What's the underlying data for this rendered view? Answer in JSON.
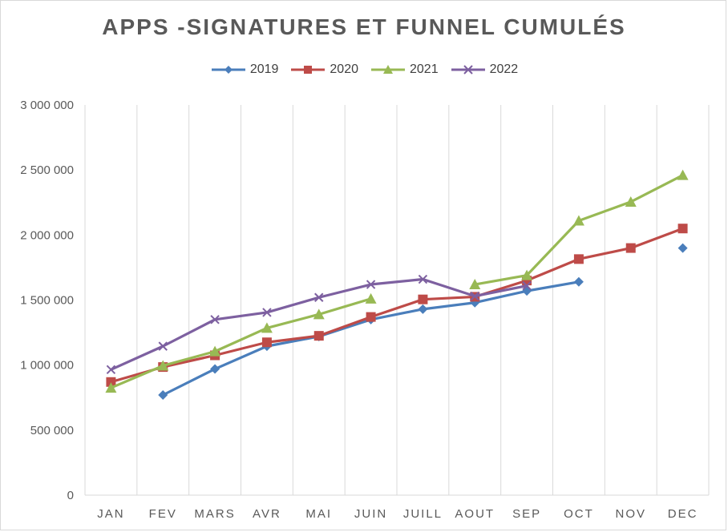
{
  "chart_data": {
    "type": "line",
    "title": "APPS -SIGNATURES ET FUNNEL CUMULÉS",
    "xlabel": "",
    "ylabel": "",
    "categories": [
      "JAN",
      "FEV",
      "MARS",
      "AVR",
      "MAI",
      "JUIN",
      "JUILL",
      "AOUT",
      "SEP",
      "OCT",
      "NOV",
      "DEC"
    ],
    "y_ticks": [
      "0",
      "500 000",
      "1 000 000",
      "1 500 000",
      "2 000 000",
      "2 500 000",
      "3 000 000"
    ],
    "ylim": [
      0,
      3000000
    ],
    "grid": "vertical",
    "legend_position": "top",
    "series": [
      {
        "name": "2019",
        "color": "#4a7ebb",
        "marker": "diamond",
        "values": [
          null,
          770000,
          970000,
          1145000,
          1220000,
          1350000,
          1430000,
          1480000,
          1570000,
          1640000,
          null,
          1900000
        ]
      },
      {
        "name": "2020",
        "color": "#be4b48",
        "marker": "square",
        "values": [
          870000,
          985000,
          1075000,
          1175000,
          1225000,
          1370000,
          1505000,
          1525000,
          1650000,
          1815000,
          1900000,
          2050000
        ]
      },
      {
        "name": "2021",
        "color": "#98b954",
        "marker": "triangle",
        "values": [
          825000,
          995000,
          1105000,
          1285000,
          1390000,
          1510000,
          null,
          1620000,
          1690000,
          2110000,
          2255000,
          2460000
        ]
      },
      {
        "name": "2022",
        "color": "#7d60a0",
        "marker": "x",
        "values": [
          965000,
          1145000,
          1350000,
          1405000,
          1520000,
          1620000,
          1660000,
          1530000,
          1610000,
          null,
          null,
          null
        ]
      }
    ]
  }
}
